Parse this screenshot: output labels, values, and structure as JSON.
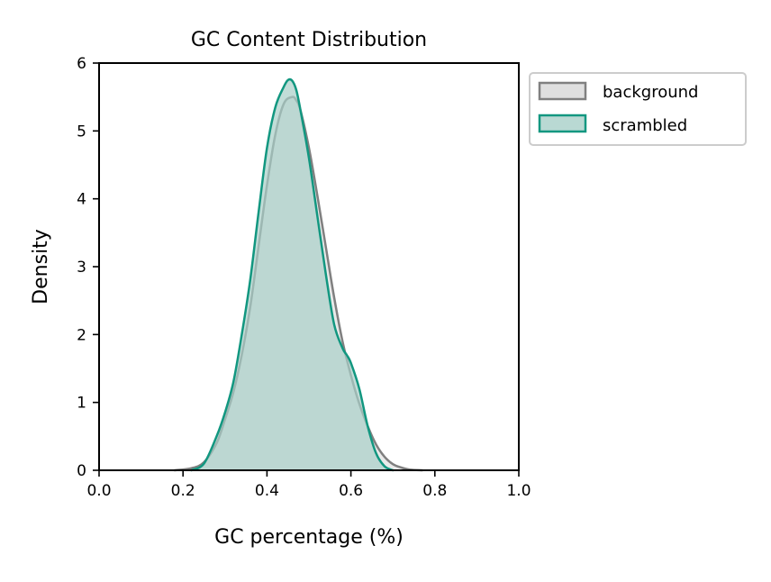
{
  "chart_data": {
    "type": "area",
    "title": "GC Content Distribution",
    "xlabel": "GC percentage (%)",
    "ylabel": "Density",
    "xlim": [
      0.0,
      1.0
    ],
    "ylim": [
      0,
      6
    ],
    "xticks": [
      "0.0",
      "0.2",
      "0.4",
      "0.6",
      "0.8",
      "1.0"
    ],
    "yticks": [
      "0",
      "1",
      "2",
      "3",
      "4",
      "5",
      "6"
    ],
    "grid": false,
    "legend_position": "outside-top-right",
    "series": [
      {
        "name": "background",
        "line_color": "#808080",
        "fill_color": "#d9d9d9",
        "x": [
          0.18,
          0.22,
          0.25,
          0.28,
          0.3,
          0.32,
          0.34,
          0.36,
          0.38,
          0.4,
          0.42,
          0.44,
          0.46,
          0.47,
          0.48,
          0.5,
          0.52,
          0.54,
          0.56,
          0.58,
          0.6,
          0.62,
          0.64,
          0.66,
          0.68,
          0.7,
          0.72,
          0.74,
          0.77
        ],
        "y": [
          0.0,
          0.03,
          0.12,
          0.4,
          0.75,
          1.15,
          1.7,
          2.4,
          3.3,
          4.2,
          4.95,
          5.4,
          5.5,
          5.45,
          5.3,
          4.75,
          4.05,
          3.3,
          2.55,
          1.9,
          1.4,
          0.98,
          0.65,
          0.38,
          0.2,
          0.09,
          0.04,
          0.01,
          0.0
        ]
      },
      {
        "name": "scrambled",
        "line_color": "#129780",
        "fill_color": "#a8cfc8",
        "x": [
          0.22,
          0.25,
          0.28,
          0.3,
          0.32,
          0.34,
          0.36,
          0.38,
          0.4,
          0.42,
          0.44,
          0.45,
          0.46,
          0.47,
          0.48,
          0.5,
          0.52,
          0.54,
          0.56,
          0.58,
          0.59,
          0.6,
          0.62,
          0.64,
          0.66,
          0.68,
          0.7
        ],
        "y": [
          0.0,
          0.1,
          0.5,
          0.85,
          1.3,
          2.0,
          2.8,
          3.8,
          4.75,
          5.35,
          5.65,
          5.75,
          5.74,
          5.6,
          5.3,
          4.6,
          3.75,
          2.9,
          2.15,
          1.8,
          1.7,
          1.58,
          1.2,
          0.65,
          0.25,
          0.06,
          0.0
        ]
      }
    ]
  }
}
